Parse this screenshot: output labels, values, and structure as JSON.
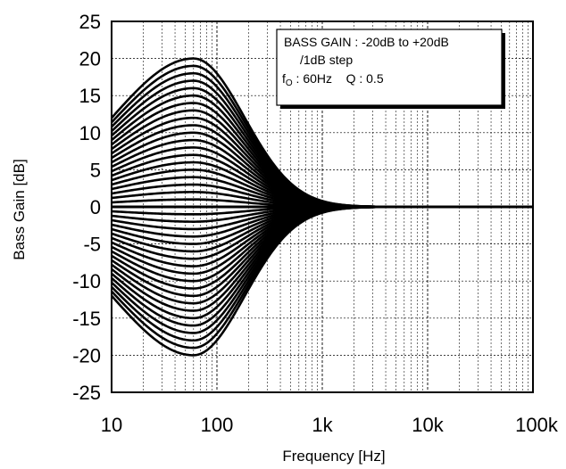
{
  "chart_data": {
    "type": "line",
    "title": "",
    "xlabel": "Frequency [Hz]",
    "ylabel": "Bass Gain [dB]",
    "x_scale": "log",
    "xlim": [
      10,
      100000
    ],
    "ylim": [
      -25,
      25
    ],
    "grid": true,
    "x_ticks": [
      10,
      100,
      1000,
      10000,
      100000
    ],
    "x_tick_labels": [
      "10",
      "100",
      "1k",
      "10k",
      "100k"
    ],
    "y_ticks": [
      -25,
      -20,
      -15,
      -10,
      -5,
      0,
      5,
      10,
      15,
      20,
      25
    ],
    "y_tick_labels": [
      "-25",
      "-20",
      "-15",
      "-10",
      "-5",
      "0",
      "5",
      "10",
      "15",
      "20",
      "25"
    ],
    "annotation": {
      "line1": "BASS GAIN : -20dB to +20dB",
      "line2": "/1dB step",
      "line3_prefix": "f",
      "line3_sub": "O",
      "line3_rest": " : 60Hz    Q : 0.5"
    },
    "curve_params": {
      "center_frequency_hz": 60,
      "q": 0.5,
      "gain_min_db": -20,
      "gain_max_db": 20,
      "gain_step_db": 1
    },
    "series_gains_db": [
      -20,
      -19,
      -18,
      -17,
      -16,
      -15,
      -14,
      -13,
      -12,
      -11,
      -10,
      -9,
      -8,
      -7,
      -6,
      -5,
      -4,
      -3,
      -2,
      -1,
      0,
      1,
      2,
      3,
      4,
      5,
      6,
      7,
      8,
      9,
      10,
      11,
      12,
      13,
      14,
      15,
      16,
      17,
      18,
      19,
      20
    ]
  }
}
